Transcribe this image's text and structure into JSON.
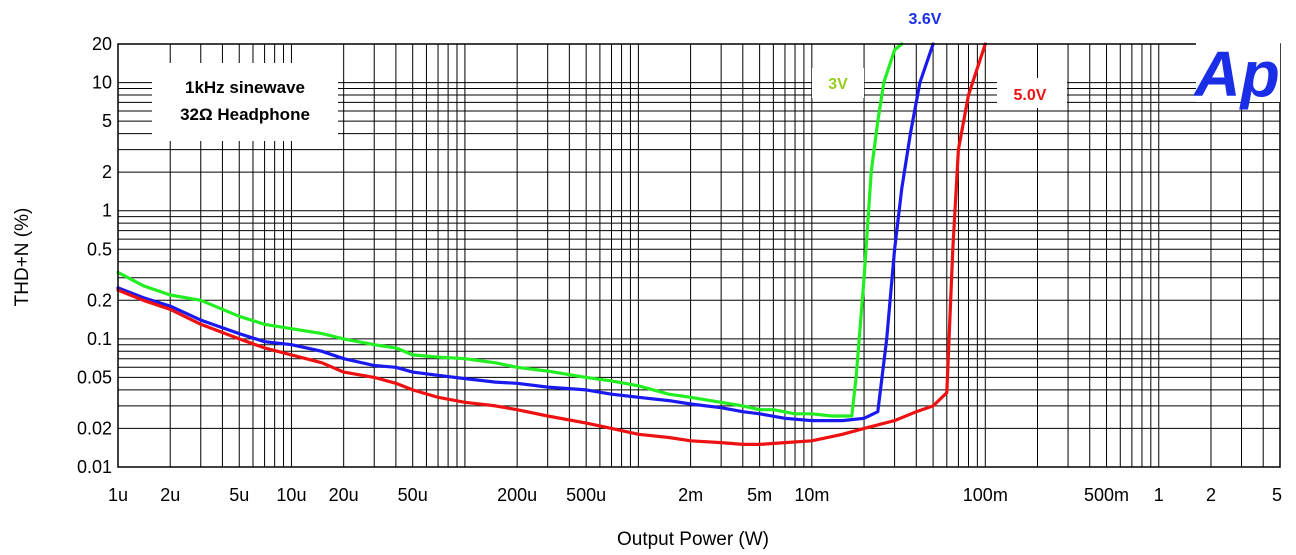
{
  "chart_data": {
    "type": "line",
    "xlabel": "Output Power (W)",
    "ylabel": "THD+N (%)",
    "x_scale": "log",
    "y_scale": "log",
    "xlim": [
      1e-06,
      5
    ],
    "ylim": [
      0.01,
      20
    ],
    "grid": true,
    "x_ticks": [
      {
        "value": 1e-06,
        "label": "1u"
      },
      {
        "value": 2e-06,
        "label": "2u"
      },
      {
        "value": 5e-06,
        "label": "5u"
      },
      {
        "value": 1e-05,
        "label": "10u"
      },
      {
        "value": 2e-05,
        "label": "20u"
      },
      {
        "value": 5e-05,
        "label": "50u"
      },
      {
        "value": 0.0002,
        "label": "200u"
      },
      {
        "value": 0.0005,
        "label": "500u"
      },
      {
        "value": 0.002,
        "label": "2m"
      },
      {
        "value": 0.005,
        "label": "5m"
      },
      {
        "value": 0.01,
        "label": "10m"
      },
      {
        "value": 0.1,
        "label": "100m"
      },
      {
        "value": 0.5,
        "label": "500m"
      },
      {
        "value": 1,
        "label": "1"
      },
      {
        "value": 2,
        "label": "2"
      },
      {
        "value": 5,
        "label": "5"
      }
    ],
    "y_ticks": [
      {
        "value": 20,
        "label": "20"
      },
      {
        "value": 10,
        "label": "10"
      },
      {
        "value": 5,
        "label": "5"
      },
      {
        "value": 2,
        "label": "2"
      },
      {
        "value": 1,
        "label": "1"
      },
      {
        "value": 0.5,
        "label": "0.5"
      },
      {
        "value": 0.2,
        "label": "0.2"
      },
      {
        "value": 0.1,
        "label": "0.1"
      },
      {
        "value": 0.05,
        "label": "0.05"
      },
      {
        "value": 0.02,
        "label": "0.02"
      },
      {
        "value": 0.01,
        "label": "0.01"
      }
    ],
    "annotations": {
      "line1": "1kHz sinewave",
      "line2": "32Ω Headphone",
      "logo": "Ap"
    },
    "series": [
      {
        "name": "3V",
        "color": "#22ee22",
        "label_color": "#99cc22",
        "x": [
          1e-06,
          1.4e-06,
          2e-06,
          3e-06,
          5e-06,
          7e-06,
          1e-05,
          1.5e-05,
          2e-05,
          3e-05,
          4e-05,
          5e-05,
          7e-05,
          0.0001,
          0.00015,
          0.0002,
          0.0003,
          0.0005,
          0.0007,
          0.001,
          0.0015,
          0.002,
          0.003,
          0.004,
          0.005,
          0.006,
          0.008,
          0.01,
          0.013,
          0.017,
          0.018,
          0.02,
          0.022,
          0.024,
          0.026,
          0.03,
          0.033
        ],
        "y": [
          0.33,
          0.26,
          0.22,
          0.2,
          0.15,
          0.13,
          0.12,
          0.11,
          0.1,
          0.09,
          0.085,
          0.075,
          0.072,
          0.07,
          0.065,
          0.06,
          0.056,
          0.05,
          0.047,
          0.043,
          0.037,
          0.035,
          0.032,
          0.03,
          0.028,
          0.028,
          0.026,
          0.026,
          0.025,
          0.025,
          0.05,
          0.3,
          2,
          5,
          10,
          18,
          20
        ]
      },
      {
        "name": "3.6V",
        "color": "#1a1aee",
        "label_color": "#1a2ee8",
        "x": [
          1e-06,
          1.4e-06,
          2e-06,
          3e-06,
          5e-06,
          7e-06,
          1e-05,
          1.5e-05,
          2e-05,
          3e-05,
          4e-05,
          5e-05,
          7e-05,
          0.0001,
          0.00015,
          0.0002,
          0.0003,
          0.0005,
          0.0007,
          0.001,
          0.0015,
          0.002,
          0.003,
          0.004,
          0.005,
          0.007,
          0.01,
          0.015,
          0.02,
          0.024,
          0.027,
          0.03,
          0.033,
          0.037,
          0.042,
          0.05
        ],
        "y": [
          0.25,
          0.21,
          0.18,
          0.14,
          0.11,
          0.095,
          0.09,
          0.08,
          0.07,
          0.062,
          0.06,
          0.055,
          0.052,
          0.049,
          0.046,
          0.045,
          0.042,
          0.04,
          0.037,
          0.035,
          0.033,
          0.031,
          0.029,
          0.027,
          0.026,
          0.024,
          0.023,
          0.023,
          0.024,
          0.027,
          0.1,
          0.5,
          1.5,
          4,
          10,
          20
        ]
      },
      {
        "name": "5.0V",
        "color": "#ee1111",
        "label_color": "#ee1111",
        "x": [
          1e-06,
          1.4e-06,
          2e-06,
          3e-06,
          5e-06,
          7e-06,
          1e-05,
          1.5e-05,
          2e-05,
          3e-05,
          4e-05,
          5e-05,
          7e-05,
          0.0001,
          0.00015,
          0.0002,
          0.0003,
          0.0005,
          0.0007,
          0.001,
          0.0015,
          0.002,
          0.003,
          0.004,
          0.005,
          0.007,
          0.01,
          0.015,
          0.02,
          0.03,
          0.04,
          0.05,
          0.06,
          0.065,
          0.07,
          0.08,
          0.1
        ],
        "y": [
          0.24,
          0.2,
          0.17,
          0.13,
          0.1,
          0.085,
          0.075,
          0.065,
          0.055,
          0.05,
          0.045,
          0.04,
          0.035,
          0.032,
          0.03,
          0.028,
          0.025,
          0.022,
          0.02,
          0.018,
          0.017,
          0.016,
          0.0155,
          0.015,
          0.015,
          0.0155,
          0.016,
          0.018,
          0.02,
          0.023,
          0.027,
          0.03,
          0.038,
          0.5,
          3,
          8,
          20
        ]
      }
    ]
  }
}
